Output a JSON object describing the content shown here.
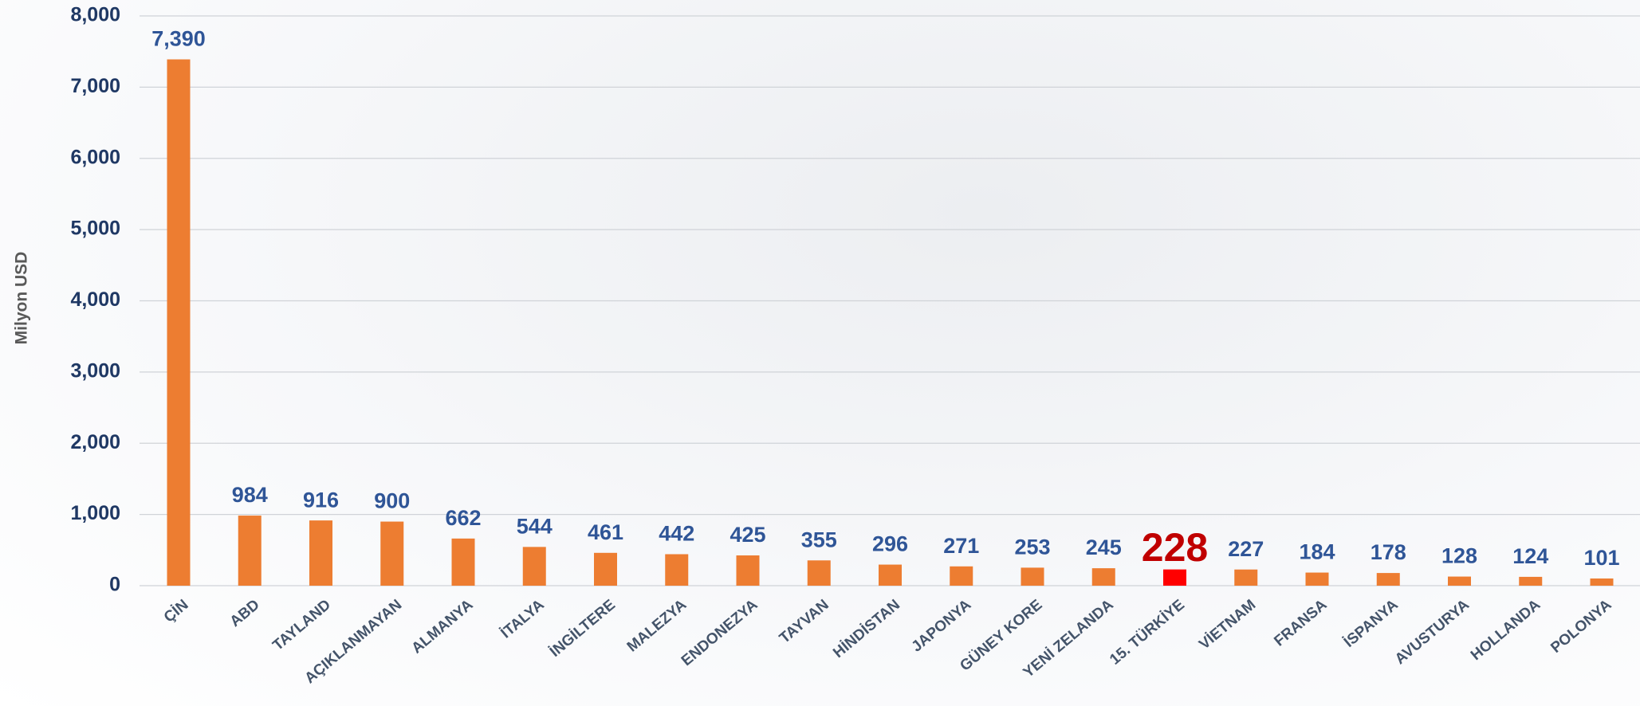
{
  "chart_data": {
    "type": "bar",
    "y_label": "Milyon USD",
    "categories": [
      "ÇİN",
      "ABD",
      "TAYLAND",
      "AÇIKLANMAYAN",
      "ALMANYA",
      "İTALYA",
      "İNGİLTERE",
      "MALEZYA",
      "ENDONEZYA",
      "TAYVAN",
      "HİNDİSTAN",
      "JAPONYA",
      "GÜNEY KORE",
      "YENİ ZELANDA",
      "15. TÜRKİYE",
      "VİETNAM",
      "FRANSA",
      "İSPANYA",
      "AVUSTURYA",
      "HOLLANDA",
      "POLONYA"
    ],
    "values": [
      7390,
      984,
      916,
      900,
      662,
      544,
      461,
      442,
      425,
      355,
      296,
      271,
      253,
      245,
      228,
      227,
      184,
      178,
      128,
      124,
      101
    ],
    "value_labels": [
      "7,390",
      "984",
      "916",
      "900",
      "662",
      "544",
      "461",
      "442",
      "425",
      "355",
      "296",
      "271",
      "253",
      "245",
      "228",
      "227",
      "184",
      "178",
      "128",
      "124",
      "101"
    ],
    "color": "#ed7d31",
    "colors": [
      "#ed7d31",
      "#ed7d31",
      "#ed7d31",
      "#ed7d31",
      "#ed7d31",
      "#ed7d31",
      "#ed7d31",
      "#ed7d31",
      "#ed7d31",
      "#ed7d31",
      "#ed7d31",
      "#ed7d31",
      "#ed7d31",
      "#ed7d31",
      "#ff0000",
      "#ed7d31",
      "#ed7d31",
      "#ed7d31",
      "#ed7d31",
      "#ed7d31",
      "#ed7d31"
    ],
    "ylim": [
      0,
      8000
    ],
    "yticks": [
      0,
      {
        "value": 1000,
        "label": "1,000"
      },
      {
        "value": 2000,
        "label": "2,000"
      },
      {
        "value": 3000,
        "label": "3,000"
      },
      {
        "value": 4000,
        "label": "4,000"
      },
      {
        "value": 5000,
        "label": "5,000"
      },
      {
        "value": 6000,
        "label": "6,000"
      },
      {
        "value": 7000,
        "label": "7,000"
      },
      {
        "value": 8000,
        "label": "8,000"
      }
    ],
    "grid": true
  }
}
